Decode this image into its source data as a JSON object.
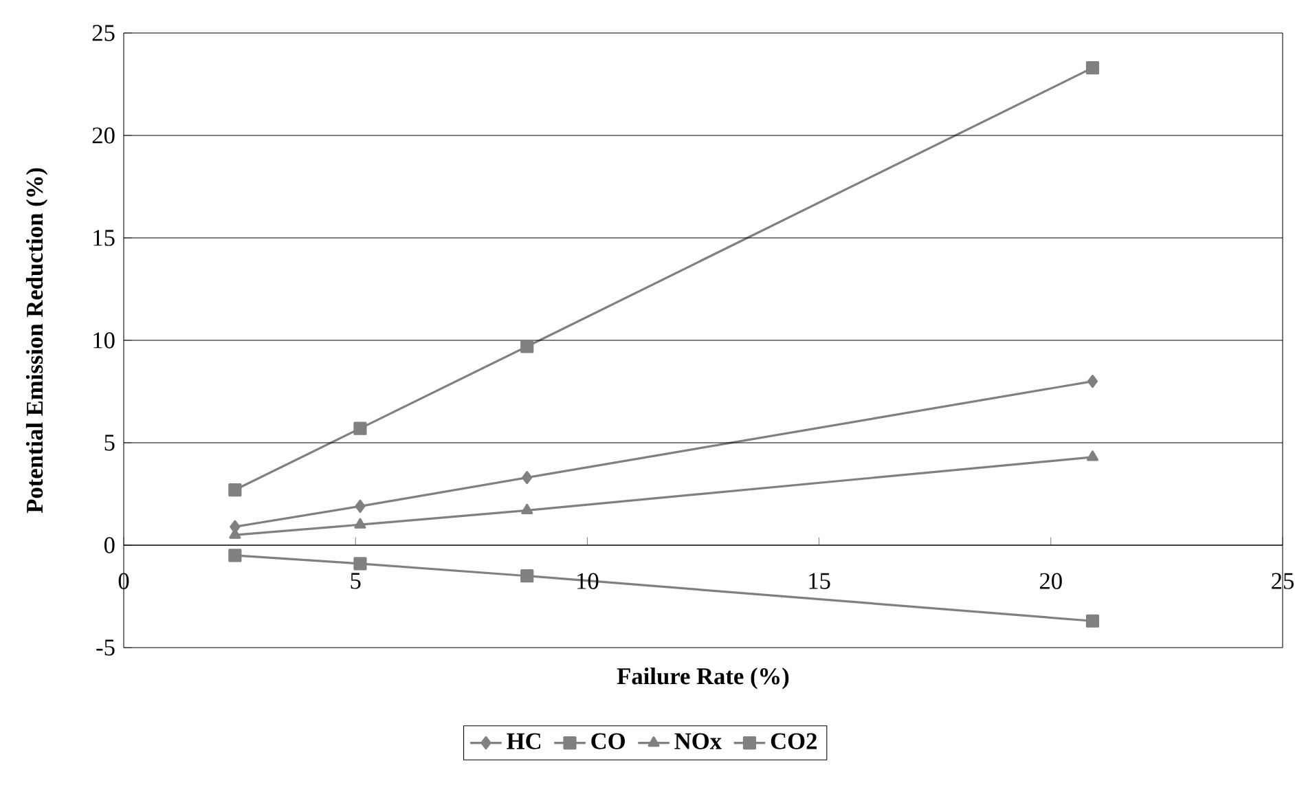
{
  "chart_data": {
    "type": "line",
    "xlabel": "Failure Rate (%)",
    "ylabel": "Potential Emission Reduction (%)",
    "x": [
      2.4,
      5.1,
      8.7,
      20.9
    ],
    "series": [
      {
        "name": "HC",
        "color": "#808080",
        "marker": "diamond",
        "values": [
          0.9,
          1.9,
          3.3,
          8.0
        ]
      },
      {
        "name": "CO",
        "color": "#808080",
        "marker": "square",
        "values": [
          2.7,
          5.7,
          9.7,
          23.3
        ]
      },
      {
        "name": "NOx",
        "color": "#808080",
        "marker": "triangle",
        "values": [
          0.5,
          1.0,
          1.7,
          4.3
        ]
      },
      {
        "name": "CO2",
        "color": "#808080",
        "marker": "square",
        "values": [
          -0.5,
          -0.9,
          -1.5,
          -3.7
        ]
      }
    ],
    "xlim": [
      0,
      25
    ],
    "xticks": [
      0,
      5,
      10,
      15,
      20,
      25
    ],
    "ylim": [
      -5,
      25
    ],
    "yticks": [
      -5,
      0,
      5,
      10,
      15,
      20,
      25
    ],
    "grid": "y",
    "legend": "bottom",
    "line_style": "solid"
  }
}
